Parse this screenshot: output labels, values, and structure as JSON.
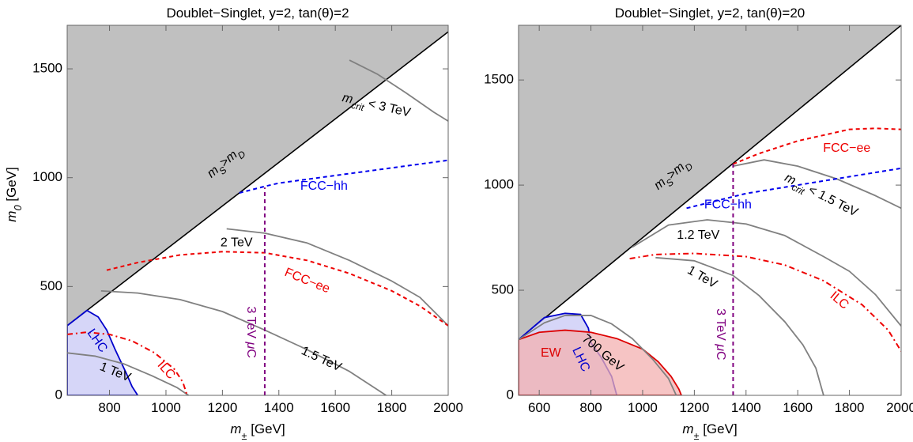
{
  "chart_data": [
    {
      "type": "line",
      "title": "Doublet−Singlet, y=2, tan(θ)=2",
      "xlabel": "m± [GeV]",
      "ylabel": "m0 [GeV]",
      "xlim": [
        650,
        2000
      ],
      "ylim": [
        0,
        1700
      ],
      "xticks": [
        "800",
        "1000",
        "1200",
        "1400",
        "1600",
        "1800",
        "2000"
      ],
      "xtick_values": [
        800,
        1000,
        1200,
        1400,
        1600,
        1800,
        2000
      ],
      "yticks": [
        "0",
        "500",
        "1000",
        "1500"
      ],
      "ytick_values": [
        0,
        500,
        1000,
        1500
      ],
      "excluded_region": {
        "label": "mS>mD",
        "boundary": [
          [
            650,
            320
          ],
          [
            2000,
            1670
          ]
        ],
        "fill": "#c0c0c0"
      },
      "regions": [
        {
          "name": "LHC",
          "color": "#0000cc",
          "fill": "#c8c8f5",
          "points": [
            [
              650,
              320
            ],
            [
              720,
              390
            ],
            [
              760,
              360
            ],
            [
              790,
              300
            ],
            [
              820,
              210
            ],
            [
              860,
              100
            ],
            [
              880,
              40
            ],
            [
              900,
              0
            ],
            [
              650,
              0
            ]
          ]
        }
      ],
      "series": [
        {
          "name": "mcrit < 3 TeV",
          "style": "solid",
          "color": "#808080",
          "points": [
            [
              1650,
              1540
            ],
            [
              1750,
              1475
            ],
            [
              1850,
              1390
            ],
            [
              1950,
              1300
            ],
            [
              2000,
              1260
            ]
          ]
        },
        {
          "name": "2 TeV",
          "style": "solid",
          "color": "#808080",
          "points": [
            [
              1215,
              765
            ],
            [
              1350,
              745
            ],
            [
              1500,
              700
            ],
            [
              1650,
              620
            ],
            [
              1800,
              525
            ],
            [
              1900,
              450
            ],
            [
              2000,
              320
            ]
          ]
        },
        {
          "name": "1.5 TeV",
          "style": "solid",
          "color": "#808080",
          "points": [
            [
              770,
              480
            ],
            [
              900,
              470
            ],
            [
              1050,
              440
            ],
            [
              1200,
              385
            ],
            [
              1350,
              300
            ],
            [
              1500,
              210
            ],
            [
              1650,
              110
            ],
            [
              1780,
              0
            ]
          ]
        },
        {
          "name": "1 TeV",
          "style": "solid",
          "color": "#808080",
          "points": [
            [
              650,
              195
            ],
            [
              750,
              180
            ],
            [
              850,
              145
            ],
            [
              950,
              90
            ],
            [
              1040,
              35
            ],
            [
              1080,
              0
            ]
          ]
        },
        {
          "name": "FCC−hh",
          "style": "dashed",
          "color": "#0000ee",
          "points": [
            [
              1260,
              930
            ],
            [
              1350,
              960
            ],
            [
              1400,
              975
            ],
            [
              1600,
              1010
            ],
            [
              1800,
              1045
            ],
            [
              2000,
              1080
            ]
          ]
        },
        {
          "name": "FCC−ee",
          "style": "dashed",
          "color": "#ee0000",
          "points": [
            [
              790,
              575
            ],
            [
              900,
              610
            ],
            [
              1050,
              645
            ],
            [
              1200,
              660
            ],
            [
              1350,
              655
            ],
            [
              1500,
              620
            ],
            [
              1650,
              560
            ],
            [
              1800,
              480
            ],
            [
              1900,
              410
            ],
            [
              2000,
              320
            ]
          ]
        },
        {
          "name": "ILC",
          "style": "dashdot",
          "color": "#ee0000",
          "points": [
            [
              650,
              280
            ],
            [
              720,
              290
            ],
            [
              800,
              280
            ],
            [
              880,
              250
            ],
            [
              960,
              195
            ],
            [
              1030,
              120
            ],
            [
              1060,
              60
            ],
            [
              1075,
              0
            ]
          ]
        },
        {
          "name": "3 TeV μC",
          "style": "dashed",
          "color": "#800080",
          "points": [
            [
              1350,
              0
            ],
            [
              1350,
              955
            ]
          ]
        }
      ],
      "labels": [
        {
          "text": "mcrit < 3 TeV",
          "x": 1745,
          "y": 1330,
          "rot": 13,
          "color": "#000000"
        },
        {
          "text": "mS>mD",
          "x": 1210,
          "y": 1070,
          "rot": -40,
          "color": "#000000"
        },
        {
          "text": "FCC−hh",
          "x": 1560,
          "y": 960,
          "rot": 0,
          "color": "#0000ee"
        },
        {
          "text": "2 TeV",
          "x": 1250,
          "y": 700,
          "rot": 0,
          "color": "#000000"
        },
        {
          "text": "FCC−ee",
          "x": 1500,
          "y": 525,
          "rot": 22,
          "color": "#ee0000"
        },
        {
          "text": "3 TeV μC",
          "x": 1300,
          "y": 290,
          "rot": 90,
          "color": "#800080"
        },
        {
          "text": "LHC",
          "x": 755,
          "y": 250,
          "rot": 55,
          "color": "#0000cc"
        },
        {
          "text": "1.5 TeV",
          "x": 1550,
          "y": 165,
          "rot": 25,
          "color": "#000000"
        },
        {
          "text": "1 TeV",
          "x": 820,
          "y": 105,
          "rot": 22,
          "color": "#000000"
        },
        {
          "text": "ILC",
          "x": 1000,
          "y": 115,
          "rot": 48,
          "color": "#ee0000"
        }
      ]
    },
    {
      "type": "line",
      "title": "Doublet−Singlet, y=2, tan(θ)=20",
      "xlabel": "m± [GeV]",
      "ylabel": "",
      "xlim": [
        520,
        2000
      ],
      "ylim": [
        0,
        1760
      ],
      "xticks": [
        "600",
        "800",
        "1000",
        "1200",
        "1400",
        "1600",
        "1800",
        "2000"
      ],
      "xtick_values": [
        600,
        800,
        1000,
        1200,
        1400,
        1600,
        1800,
        2000
      ],
      "yticks": [
        "0",
        "500",
        "1000",
        "1500"
      ],
      "ytick_values": [
        0,
        500,
        1000,
        1500
      ],
      "excluded_region": {
        "label": "mS>mD",
        "boundary": [
          [
            520,
            265
          ],
          [
            2000,
            1760
          ]
        ],
        "fill": "#c0c0c0"
      },
      "regions": [
        {
          "name": "LHC",
          "color": "#0000cc",
          "fill": "#c8c8f5",
          "points": [
            [
              520,
              265
            ],
            [
              620,
              370
            ],
            [
              700,
              390
            ],
            [
              760,
              385
            ],
            [
              790,
              320
            ],
            [
              800,
              250
            ],
            [
              840,
              180
            ],
            [
              880,
              90
            ],
            [
              900,
              0
            ],
            [
              520,
              0
            ]
          ]
        },
        {
          "name": "EW",
          "color": "#dd0000",
          "fill": "#f3b0b0",
          "points": [
            [
              520,
              265
            ],
            [
              600,
              300
            ],
            [
              700,
              310
            ],
            [
              800,
              300
            ],
            [
              900,
              270
            ],
            [
              1000,
              220
            ],
            [
              1060,
              160
            ],
            [
              1110,
              90
            ],
            [
              1140,
              30
            ],
            [
              1150,
              0
            ],
            [
              520,
              0
            ]
          ]
        }
      ],
      "series": [
        {
          "name": "FCC−ee",
          "style": "dashed",
          "color": "#ee0000",
          "points": [
            [
              1350,
              1100
            ],
            [
              1450,
              1150
            ],
            [
              1600,
              1210
            ],
            [
              1800,
              1265
            ],
            [
              1900,
              1270
            ],
            [
              2000,
              1265
            ]
          ]
        },
        {
          "name": "mcrit < 1.5 TeV",
          "style": "solid",
          "color": "#808080",
          "points": [
            [
              1350,
              1090
            ],
            [
              1470,
              1120
            ],
            [
              1600,
              1090
            ],
            [
              1750,
              1030
            ],
            [
              1900,
              950
            ],
            [
              2000,
              890
            ]
          ]
        },
        {
          "name": "FCC−hh",
          "style": "dashed",
          "color": "#0000ee",
          "points": [
            [
              1170,
              890
            ],
            [
              1300,
              930
            ],
            [
              1400,
              960
            ],
            [
              1600,
              1000
            ],
            [
              1800,
              1040
            ],
            [
              2000,
              1080
            ]
          ]
        },
        {
          "name": "1.2 TeV",
          "style": "solid",
          "color": "#808080",
          "points": [
            [
              960,
              705
            ],
            [
              1100,
              810
            ],
            [
              1250,
              835
            ],
            [
              1400,
              815
            ],
            [
              1550,
              760
            ],
            [
              1700,
              660
            ],
            [
              1800,
              590
            ],
            [
              1900,
              480
            ],
            [
              2000,
              330
            ]
          ]
        },
        {
          "name": "ILC",
          "style": "dashdot",
          "color": "#ee0000",
          "points": [
            [
              950,
              650
            ],
            [
              1050,
              670
            ],
            [
              1200,
              675
            ],
            [
              1400,
              660
            ],
            [
              1550,
              620
            ],
            [
              1700,
              545
            ],
            [
              1850,
              430
            ],
            [
              1950,
              310
            ],
            [
              2000,
              210
            ]
          ]
        },
        {
          "name": "1 TeV",
          "style": "solid",
          "color": "#808080",
          "points": [
            [
              1050,
              655
            ],
            [
              1200,
              640
            ],
            [
              1350,
              570
            ],
            [
              1450,
              475
            ],
            [
              1550,
              350
            ],
            [
              1620,
              240
            ],
            [
              1670,
              130
            ],
            [
              1700,
              0
            ]
          ]
        },
        {
          "name": "700 GeV",
          "style": "solid",
          "color": "#808080",
          "points": [
            [
              520,
              265
            ],
            [
              620,
              345
            ],
            [
              700,
              380
            ],
            [
              800,
              380
            ],
            [
              880,
              340
            ],
            [
              960,
              270
            ],
            [
              1040,
              170
            ],
            [
              1100,
              80
            ],
            [
              1130,
              0
            ]
          ]
        },
        {
          "name": "3 TeV μC",
          "style": "dashed",
          "color": "#800080",
          "points": [
            [
              1350,
              0
            ],
            [
              1350,
              1100
            ]
          ]
        }
      ],
      "labels": [
        {
          "text": "FCC−ee",
          "x": 1790,
          "y": 1175,
          "rot": 0,
          "color": "#ee0000"
        },
        {
          "text": "mS>mD",
          "x": 1115,
          "y": 1050,
          "rot": -39,
          "color": "#000000"
        },
        {
          "text": "mcrit < 1.5 TeV",
          "x": 1690,
          "y": 950,
          "rot": 27,
          "color": "#000000"
        },
        {
          "text": "FCC−hh",
          "x": 1330,
          "y": 905,
          "rot": 0,
          "color": "#0000ee"
        },
        {
          "text": "1.2 TeV",
          "x": 1215,
          "y": 760,
          "rot": 0,
          "color": "#000000"
        },
        {
          "text": "1 TeV",
          "x": 1230,
          "y": 560,
          "rot": 30,
          "color": "#000000"
        },
        {
          "text": "ILC",
          "x": 1760,
          "y": 450,
          "rot": 40,
          "color": "#ee0000"
        },
        {
          "text": "3 TeV μC",
          "x": 1300,
          "y": 290,
          "rot": 90,
          "color": "#800080"
        },
        {
          "text": "700 GeV",
          "x": 845,
          "y": 200,
          "rot": 40,
          "color": "#000000"
        },
        {
          "text": "EW",
          "x": 645,
          "y": 200,
          "rot": 0,
          "color": "#dd0000"
        },
        {
          "text": "LHC",
          "x": 760,
          "y": 170,
          "rot": 65,
          "color": "#0000cc"
        }
      ]
    }
  ]
}
